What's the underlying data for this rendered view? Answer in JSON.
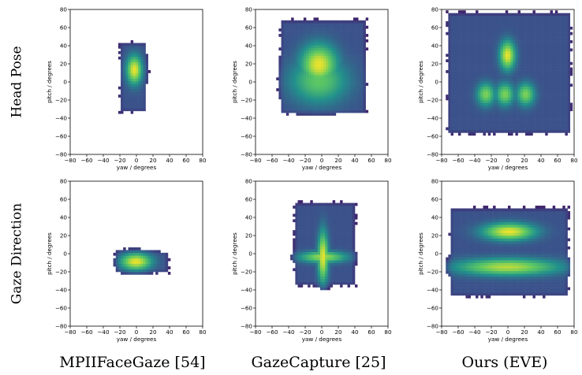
{
  "row_labels": [
    "Head Pose",
    "Gaze Direction"
  ],
  "column_labels": [
    "MPIIFaceGaze [54]",
    "GazeCapture [25]",
    "Ours (EVE)"
  ],
  "colormap": [
    "#440154",
    "#3b528b",
    "#21918c",
    "#5ec962",
    "#fde725"
  ],
  "chart_data": [
    {
      "type": "heatmap",
      "row": "Head Pose",
      "column": "MPIIFaceGaze [54]",
      "xlabel": "yaw / degrees",
      "ylabel": "pitch / degrees",
      "xlim": [
        -80,
        80
      ],
      "ylim": [
        -80,
        80
      ],
      "xticks": [
        -80,
        -60,
        -40,
        -20,
        0,
        20,
        40,
        60,
        80
      ],
      "yticks": [
        -80,
        -60,
        -40,
        -20,
        0,
        20,
        40,
        60,
        80
      ],
      "clusters": [
        {
          "cx": -4,
          "cy": 12,
          "sx": 6,
          "sy": 10,
          "w": 1.0
        }
      ],
      "extent": {
        "x": [
          -25,
          15
        ],
        "y": [
          -38,
          45
        ]
      }
    },
    {
      "type": "heatmap",
      "row": "Head Pose",
      "column": "GazeCapture [25]",
      "xlabel": "yaw / degrees",
      "ylabel": "pitch / degrees",
      "xlim": [
        -80,
        80
      ],
      "ylim": [
        -80,
        80
      ],
      "xticks": [
        -80,
        -60,
        -40,
        -20,
        0,
        20,
        40,
        60,
        80
      ],
      "yticks": [
        -80,
        -60,
        -40,
        -20,
        0,
        20,
        40,
        60,
        80
      ],
      "clusters": [
        {
          "cx": -5,
          "cy": 18,
          "sx": 14,
          "sy": 14,
          "w": 1.0
        },
        {
          "cx": -5,
          "cy": 0,
          "sx": 22,
          "sy": 16,
          "w": 0.6
        }
      ],
      "extent": {
        "x": [
          -55,
          55
        ],
        "y": [
          -40,
          70
        ]
      }
    },
    {
      "type": "heatmap",
      "row": "Head Pose",
      "column": "Ours (EVE)",
      "xlabel": "yaw / degrees",
      "ylabel": "pitch / degrees",
      "xlim": [
        -80,
        80
      ],
      "ylim": [
        -80,
        80
      ],
      "xticks": [
        -80,
        -60,
        -40,
        -20,
        0,
        20,
        40,
        60,
        80
      ],
      "yticks": [
        -80,
        -60,
        -40,
        -20,
        0,
        20,
        40,
        60,
        80
      ],
      "clusters": [
        {
          "cx": -2,
          "cy": 28,
          "sx": 6,
          "sy": 10,
          "w": 1.0
        },
        {
          "cx": -28,
          "cy": -15,
          "sx": 7,
          "sy": 8,
          "w": 0.7
        },
        {
          "cx": -5,
          "cy": -15,
          "sx": 7,
          "sy": 8,
          "w": 0.7
        },
        {
          "cx": 20,
          "cy": -15,
          "sx": 7,
          "sy": 8,
          "w": 0.7
        }
      ],
      "extent": {
        "x": [
          -78,
          78
        ],
        "y": [
          -62,
          78
        ]
      }
    },
    {
      "type": "heatmap",
      "row": "Gaze Direction",
      "column": "MPIIFaceGaze [54]",
      "xlabel": "yaw / degrees",
      "ylabel": "pitch / degrees",
      "xlim": [
        -80,
        80
      ],
      "ylim": [
        -80,
        80
      ],
      "xticks": [
        -80,
        -60,
        -40,
        -20,
        0,
        20,
        40,
        60,
        80
      ],
      "yticks": [
        -80,
        -60,
        -40,
        -20,
        0,
        20,
        40,
        60,
        80
      ],
      "clusters": [
        {
          "cx": -2,
          "cy": -10,
          "sx": 12,
          "sy": 6,
          "w": 1.0
        }
      ],
      "extent": {
        "x": [
          -28,
          40
        ],
        "y": [
          -26,
          5
        ]
      }
    },
    {
      "type": "heatmap",
      "row": "Gaze Direction",
      "column": "GazeCapture [25]",
      "xlabel": "yaw / degrees",
      "ylabel": "pitch / degrees",
      "xlim": [
        -80,
        80
      ],
      "ylim": [
        -80,
        80
      ],
      "xticks": [
        -80,
        -60,
        -40,
        -20,
        0,
        20,
        40,
        60,
        80
      ],
      "yticks": [
        -80,
        -60,
        -40,
        -20,
        0,
        20,
        40,
        60,
        80
      ],
      "clusters": [
        {
          "cx": 0,
          "cy": -5,
          "sx": 4,
          "sy": 18,
          "w": 1.0
        },
        {
          "cx": 0,
          "cy": -5,
          "sx": 18,
          "sy": 4,
          "w": 0.8
        }
      ],
      "extent": {
        "x": [
          -38,
          42
        ],
        "y": [
          -40,
          58
        ]
      }
    },
    {
      "type": "heatmap",
      "row": "Gaze Direction",
      "column": "Ours (EVE)",
      "xlabel": "yaw / degrees",
      "ylabel": "pitch / degrees",
      "xlim": [
        -80,
        80
      ],
      "ylim": [
        -80,
        80
      ],
      "xticks": [
        -80,
        -60,
        -40,
        -20,
        0,
        20,
        40,
        60,
        80
      ],
      "yticks": [
        -80,
        -60,
        -40,
        -20,
        0,
        20,
        40,
        60,
        80
      ],
      "clusters": [
        {
          "cx": 0,
          "cy": 23,
          "sx": 20,
          "sy": 6,
          "w": 1.0
        },
        {
          "cx": -2,
          "cy": -16,
          "sx": 40,
          "sy": 6,
          "w": 0.85
        }
      ],
      "extent": {
        "x": [
          -75,
          75
        ],
        "y": [
          -52,
          52
        ]
      }
    }
  ]
}
